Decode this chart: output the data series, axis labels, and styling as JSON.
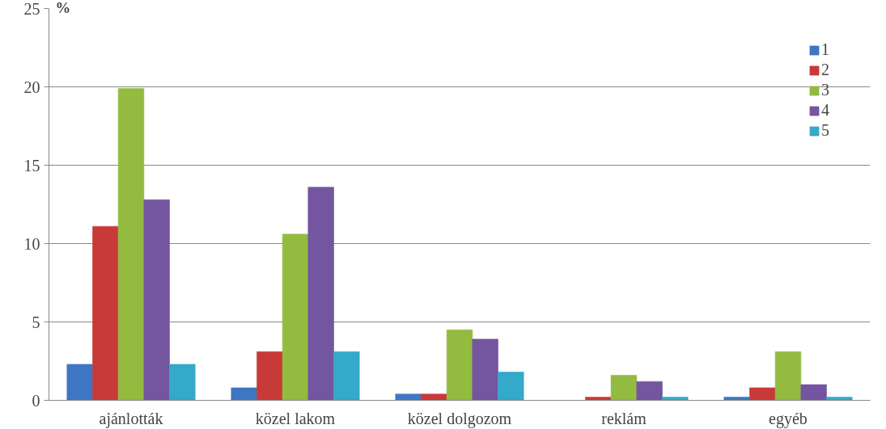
{
  "chart_data": {
    "type": "bar",
    "ylabel": "%",
    "categories": [
      "ajánlották",
      "közel lakom",
      "közel dolgozom",
      "reklám",
      "egyéb"
    ],
    "series": [
      {
        "name": "1",
        "color": "#3f76c4",
        "values": [
          2.3,
          0.8,
          0.4,
          0,
          0.2
        ]
      },
      {
        "name": "2",
        "color": "#c83a37",
        "values": [
          11.1,
          3.1,
          0.4,
          0.2,
          0.8
        ]
      },
      {
        "name": "3",
        "color": "#92bb3f",
        "values": [
          19.9,
          10.6,
          4.5,
          1.6,
          3.1
        ]
      },
      {
        "name": "4",
        "color": "#7355a0",
        "values": [
          12.8,
          13.6,
          3.9,
          1.2,
          1.0
        ]
      },
      {
        "name": "5",
        "color": "#34a9c9",
        "values": [
          2.3,
          3.1,
          1.8,
          0.2,
          0.2
        ]
      }
    ],
    "ylim": [
      0,
      25
    ],
    "yticks": [
      0,
      5,
      10,
      15,
      20,
      25
    ],
    "grid": "y",
    "legend": "top right"
  }
}
